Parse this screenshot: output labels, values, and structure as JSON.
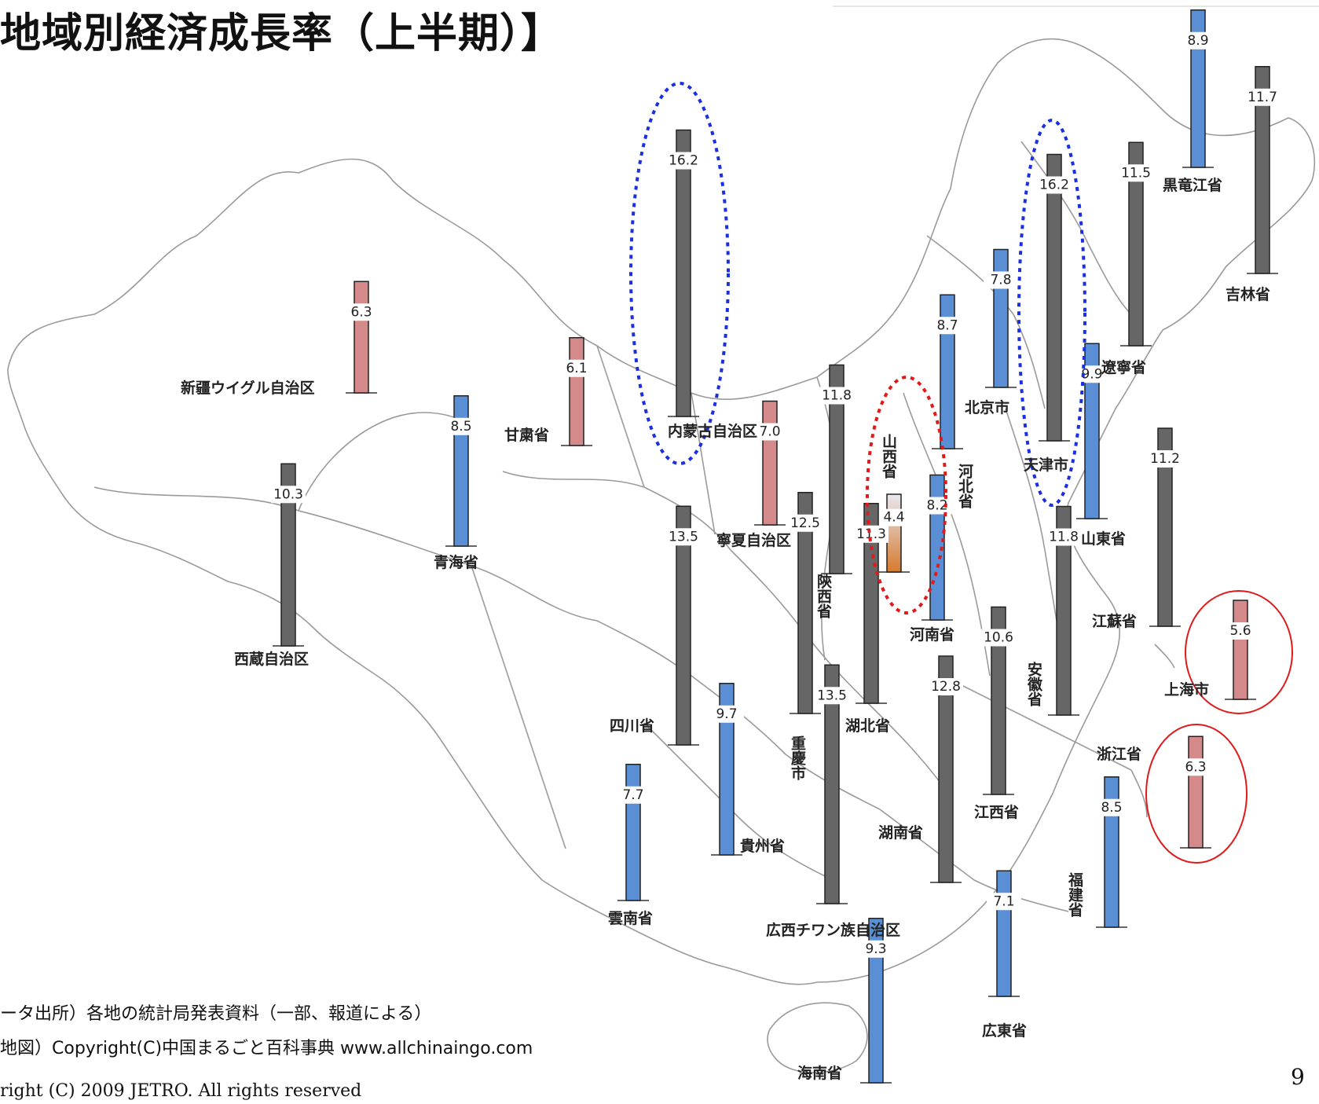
{
  "title": "地域別経済成長率（上半期）】",
  "sources": {
    "data": "ータ出所）各地の統計局発表資料（一部、報道による）",
    "map": "地図）Copyright(C)中国まるごと百科事典 www.allchinaingo.com"
  },
  "copyright": "right (C) 2009 JETRO. All rights reserved",
  "page_number": "9",
  "colors": {
    "gray": "#666666",
    "blue": "#5a8fd6",
    "pink": "#d4898a",
    "orange": "#d67a2e",
    "highlight_blue": "#1a2fe0",
    "highlight_red": "#e01a1a"
  },
  "chart_data": {
    "type": "bar",
    "title": "地域別経済成長率（上半期）】",
    "unit": "",
    "series": [
      {
        "region": "新疆ウイグル自治区",
        "value": 6.3,
        "color": "pink"
      },
      {
        "region": "甘粛省",
        "value": 6.1,
        "color": "pink"
      },
      {
        "region": "内蒙古自治区",
        "value": 16.2,
        "color": "gray"
      },
      {
        "region": "青海省",
        "value": 8.5,
        "color": "blue"
      },
      {
        "region": "西蔵自治区",
        "value": 10.3,
        "color": "gray"
      },
      {
        "region": "寧夏自治区",
        "value": 7.0,
        "color": "pink"
      },
      {
        "region": "陝西省",
        "value": 11.8,
        "color": "gray"
      },
      {
        "region": "山西省",
        "value": 4.4,
        "color": "orange"
      },
      {
        "region": "河北省",
        "value": 8.7,
        "color": "blue"
      },
      {
        "region": "北京市",
        "value": 7.8,
        "color": "blue"
      },
      {
        "region": "天津市",
        "value": 16.2,
        "color": "gray"
      },
      {
        "region": "遼寧省",
        "value": 11.5,
        "color": "gray"
      },
      {
        "region": "黒竜江省",
        "value": 8.9,
        "color": "blue"
      },
      {
        "region": "吉林省",
        "value": 11.7,
        "color": "gray"
      },
      {
        "region": "四川省",
        "value": 13.5,
        "color": "gray"
      },
      {
        "region": "重慶市",
        "value": 12.5,
        "color": "gray"
      },
      {
        "region": "河南省",
        "value": 8.2,
        "color": "blue"
      },
      {
        "region": "山東省",
        "value": 9.9,
        "color": "blue"
      },
      {
        "region": "江蘇省",
        "value": 11.2,
        "color": "gray"
      },
      {
        "region": "湖北省",
        "value": 11.3,
        "color": "gray"
      },
      {
        "region": "安徽省",
        "value": 11.8,
        "color": "gray"
      },
      {
        "region": "上海市",
        "value": 5.6,
        "color": "pink"
      },
      {
        "region": "貴州省",
        "value": 9.7,
        "color": "blue"
      },
      {
        "region": "雲南省",
        "value": 7.7,
        "color": "blue"
      },
      {
        "region": "湖南省",
        "value": 12.8,
        "color": "gray"
      },
      {
        "region": "江西省",
        "value": 10.6,
        "color": "gray"
      },
      {
        "region": "浙江省",
        "value": 6.3,
        "color": "pink"
      },
      {
        "region": "福建省",
        "value": 8.5,
        "color": "blue"
      },
      {
        "region": "広西チワン族自治区",
        "value": 13.5,
        "color": "gray"
      },
      {
        "region": "広東省",
        "value": 7.1,
        "color": "blue"
      },
      {
        "region": "海南省",
        "value": 9.3,
        "color": "blue"
      }
    ]
  }
}
